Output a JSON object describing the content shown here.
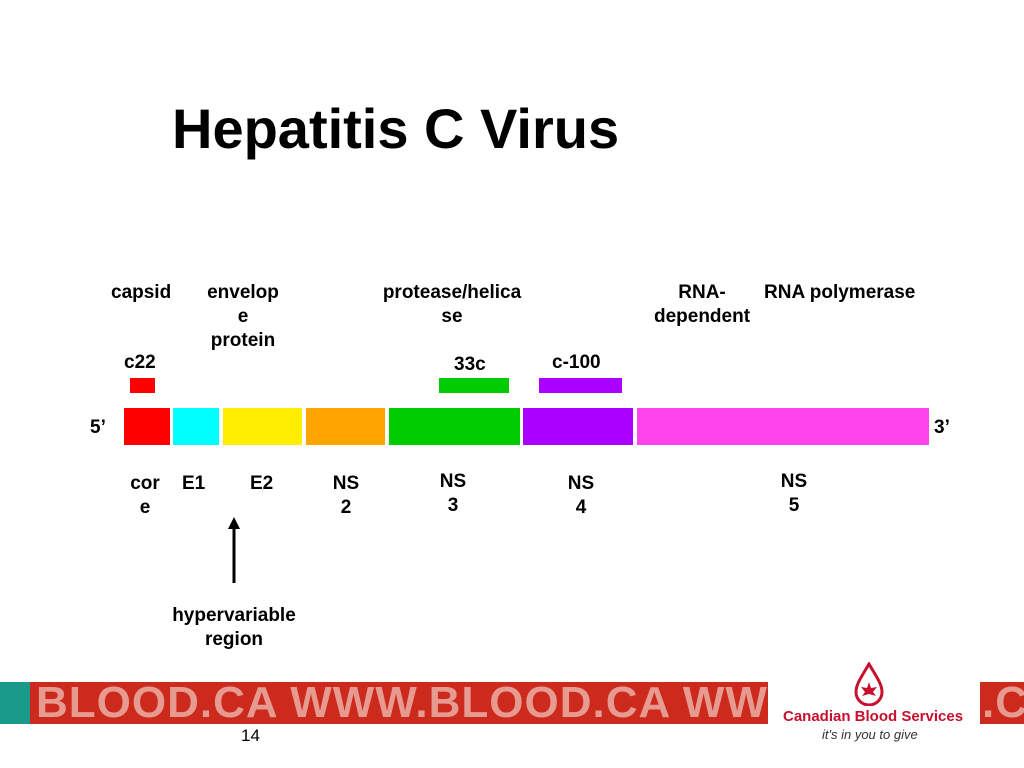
{
  "slide": {
    "title": "Hepatitis C Virus",
    "page_number": "14"
  },
  "genome": {
    "five_prime": "5’",
    "three_prime": "3’",
    "segments": [
      {
        "name": "core",
        "color": "#ff0000"
      },
      {
        "name": "E1",
        "color": "#00ffff"
      },
      {
        "name": "E2",
        "color": "#ffee00"
      },
      {
        "name": "NS2",
        "color": "#ffa500"
      },
      {
        "name": "NS3",
        "color": "#00cc00"
      },
      {
        "name": "NS4",
        "color": "#aa00ff"
      },
      {
        "name": "NS5",
        "color": "#ff44ee"
      }
    ],
    "segment_labels": {
      "core_l1": "cor",
      "core_l2": "e",
      "e1": "E1",
      "e2": "E2",
      "ns2_l1": "NS",
      "ns2_l2": "2",
      "ns3_l1": "NS",
      "ns3_l2": "3",
      "ns4_l1": "NS",
      "ns4_l2": "4",
      "ns5_l1": "NS",
      "ns5_l2": "5"
    }
  },
  "functions": {
    "capsid": "capsid",
    "envelope_l1": "envelop",
    "envelope_l2": "e",
    "envelope_l3": "protein",
    "protease_l1": "protease/helica",
    "protease_l2": "se",
    "rna_dep_l1": "RNA-",
    "rna_dep_l2": "dependent",
    "rna_pol": "RNA polymerase"
  },
  "antigens": {
    "c22": {
      "label": "c22",
      "color": "#ff0000"
    },
    "c33": {
      "label": "33c",
      "color": "#00cc00"
    },
    "c100": {
      "label": "c-100",
      "color": "#aa00ff"
    }
  },
  "annotation": {
    "hv_l1": "hypervariable",
    "hv_l2": "region"
  },
  "footer": {
    "banner_text": "BLOOD.CA WWW.BLOOD.CA WWW.BLOOD.CA",
    "right_fragment": ".C",
    "org_name": "Canadian Blood Services",
    "tagline": "it's in you to give",
    "accent_red": "#c8102e",
    "accent_teal": "#1a9a8a"
  }
}
